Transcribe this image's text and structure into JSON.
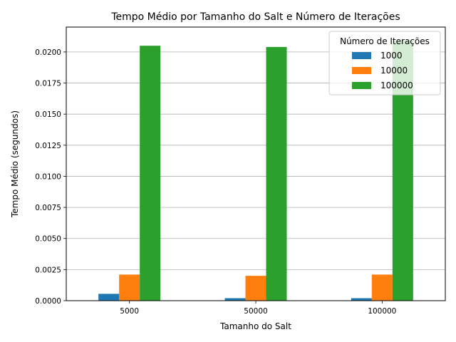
{
  "chart_data": {
    "type": "bar",
    "title": "Tempo Médio por Tamanho do Salt e Número de Iterações",
    "xlabel": "Tamanho do Salt",
    "ylabel": "Tempo Médio (segundos)",
    "categories": [
      "5000",
      "50000",
      "100000"
    ],
    "ylim": [
      0,
      0.022
    ],
    "yticks": [
      "0.0000",
      "0.0025",
      "0.0050",
      "0.0075",
      "0.0100",
      "0.0125",
      "0.0150",
      "0.0175",
      "0.0200"
    ],
    "grid": "y",
    "legend": {
      "title": "Número de Iterações",
      "placement": "top-right"
    },
    "series": [
      {
        "name": "1000",
        "color": "#1f77b4",
        "values": [
          0.00055,
          0.0002,
          0.0002
        ]
      },
      {
        "name": "10000",
        "color": "#ff7f0e",
        "values": [
          0.0021,
          0.002,
          0.0021
        ]
      },
      {
        "name": "100000",
        "color": "#2ca02c",
        "values": [
          0.0205,
          0.0204,
          0.0209
        ]
      }
    ]
  }
}
